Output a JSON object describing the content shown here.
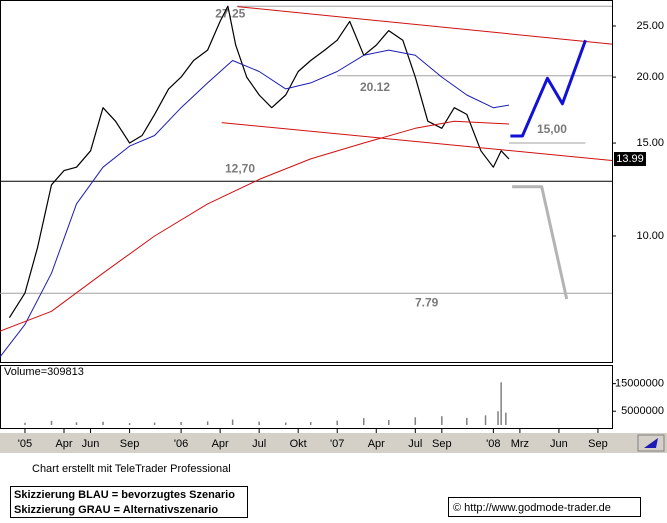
{
  "chart_data": [
    {
      "type": "line",
      "log_y": true,
      "xlim": [
        2004.84,
        2008.76
      ],
      "ylim": [
        5.77,
        28.0
      ],
      "xticks": [
        {
          "value": 2005.0,
          "label": "'05"
        },
        {
          "value": 2005.25,
          "label": "Apr"
        },
        {
          "value": 2005.42,
          "label": "Jun"
        },
        {
          "value": 2005.67,
          "label": "Sep"
        },
        {
          "value": 2006.0,
          "label": "'06"
        },
        {
          "value": 2006.25,
          "label": "Apr"
        },
        {
          "value": 2006.5,
          "label": "Jul"
        },
        {
          "value": 2006.75,
          "label": "Okt"
        },
        {
          "value": 2007.0,
          "label": "'07"
        },
        {
          "value": 2007.25,
          "label": "Apr"
        },
        {
          "value": 2007.5,
          "label": "Jul"
        },
        {
          "value": 2007.67,
          "label": "Sep"
        },
        {
          "value": 2008.0,
          "label": "'08"
        },
        {
          "value": 2008.17,
          "label": "Mrz"
        },
        {
          "value": 2008.42,
          "label": "Jun"
        },
        {
          "value": 2008.67,
          "label": "Sep"
        }
      ],
      "yticks": [
        {
          "value": 10,
          "label": "10.00"
        },
        {
          "value": 15,
          "label": "15.00"
        },
        {
          "value": 20,
          "label": "20.00"
        },
        {
          "value": 25,
          "label": "25.00"
        }
      ],
      "series": [
        {
          "color": "#000000",
          "width": 1.2,
          "x": [
            2004.9,
            2005.0,
            2005.08,
            2005.17,
            2005.25,
            2005.33,
            2005.42,
            2005.5,
            2005.58,
            2005.67,
            2005.75,
            2005.83,
            2005.92,
            2006.0,
            2006.08,
            2006.17,
            2006.25,
            2006.3,
            2006.35,
            2006.42,
            2006.5,
            2006.58,
            2006.67,
            2006.75,
            2006.83,
            2006.92,
            2007.0,
            2007.08,
            2007.17,
            2007.25,
            2007.33,
            2007.42,
            2007.5,
            2007.58,
            2007.67,
            2007.75,
            2007.83,
            2007.92,
            2008.0,
            2008.05,
            2008.1
          ],
          "values": [
            7.0,
            7.8,
            9.5,
            12.5,
            13.3,
            13.5,
            14.5,
            17.5,
            16.5,
            15.0,
            15.5,
            17.0,
            19.0,
            20.0,
            21.5,
            22.5,
            25.5,
            27.25,
            23.0,
            20.0,
            18.5,
            17.5,
            18.5,
            20.5,
            21.5,
            22.5,
            23.5,
            25.5,
            22.0,
            23.0,
            24.5,
            23.5,
            20.0,
            16.5,
            16.0,
            17.5,
            17.0,
            14.5,
            13.5,
            14.5,
            13.99
          ]
        },
        {
          "color": "#1c1cb4",
          "width": 1,
          "x": [
            2004.84,
            2005.0,
            2005.17,
            2005.33,
            2005.5,
            2005.67,
            2005.83,
            2006.0,
            2006.17,
            2006.33,
            2006.5,
            2006.67,
            2006.83,
            2007.0,
            2007.17,
            2007.33,
            2007.5,
            2007.67,
            2007.83,
            2008.0,
            2008.1
          ],
          "values": [
            5.9,
            6.8,
            8.5,
            11.5,
            13.5,
            14.8,
            15.5,
            17.5,
            19.5,
            21.5,
            20.5,
            19.0,
            19.5,
            20.5,
            22.0,
            22.5,
            22.0,
            20.0,
            18.5,
            17.5,
            17.7
          ]
        },
        {
          "color": "#d01010",
          "width": 1,
          "x": [
            2004.84,
            2005.17,
            2005.5,
            2005.83,
            2006.17,
            2006.5,
            2006.83,
            2007.17,
            2007.5,
            2007.75,
            2008.1
          ],
          "values": [
            6.6,
            7.2,
            8.5,
            10.0,
            11.5,
            12.8,
            14.0,
            15.0,
            16.0,
            16.5,
            16.3
          ]
        },
        {
          "color": "#d01010",
          "width": 1,
          "x": [
            2006.36,
            2008.76
          ],
          "values": [
            27.2,
            23.1
          ]
        },
        {
          "color": "#d01010",
          "width": 1,
          "x": [
            2006.26,
            2008.76
          ],
          "values": [
            16.4,
            13.9
          ]
        },
        {
          "color": "#1010d8",
          "width": 3,
          "x": [
            2008.109,
            2008.186,
            2008.346,
            2008.442,
            2008.59
          ],
          "values": [
            15.47,
            15.47,
            19.9,
            17.8,
            23.5
          ]
        },
        {
          "color": "#b4b4b4",
          "width": 3,
          "x": [
            2008.12,
            2008.31,
            2008.47
          ],
          "values": [
            12.4,
            12.4,
            7.6
          ]
        }
      ],
      "levels": [
        {
          "value": 27.25,
          "label": "27,25",
          "color": "#a0a0a0",
          "x": [
            2006.36,
            2008.76
          ]
        },
        {
          "value": 20.12,
          "label": "20.12",
          "color": "#a0a0a0",
          "x": [
            2007.0,
            2008.76
          ]
        },
        {
          "value": 15.0,
          "label": "15,00",
          "color": "#a0a0a0",
          "x": [
            2008.1,
            2008.59
          ]
        },
        {
          "value": 12.7,
          "label": "12,70",
          "color": "#000000",
          "x": [
            2004.84,
            2008.76
          ]
        },
        {
          "value": 7.79,
          "label": "7.79",
          "color": "#a0a0a0",
          "x": [
            2004.84,
            2008.76
          ]
        }
      ],
      "last": {
        "value": 13.99,
        "label": "13.99"
      }
    },
    {
      "type": "volume",
      "title": "Volume=309813",
      "color": "#808080",
      "ylim": [
        0,
        21400000
      ],
      "yticks": [
        5000000,
        15000000
      ],
      "x": [
        2005.0,
        2005.17,
        2005.33,
        2005.5,
        2005.67,
        2005.83,
        2006.0,
        2006.17,
        2006.33,
        2006.5,
        2006.67,
        2006.83,
        2007.0,
        2007.17,
        2007.33,
        2007.5,
        2007.67,
        2007.83,
        2007.95,
        2008.03,
        2008.05,
        2008.08
      ],
      "values": [
        800000,
        1500000,
        1000000,
        1200000,
        700000,
        900000,
        1100000,
        1300000,
        2000000,
        1200000,
        900000,
        1100000,
        1600000,
        2500000,
        1800000,
        2800000,
        3200000,
        2600000,
        3500000,
        5000000,
        15500000,
        4500000
      ]
    }
  ],
  "footer": {
    "credit": "Chart erstellt mit TeleTrader Professional",
    "legend_lines": [
      "Skizzierung BLAU = bevorzugtes Szenario",
      "Skizzierung GRAU = Alternativszenario"
    ],
    "copyright": "© http://www.godmode-trader.de"
  }
}
